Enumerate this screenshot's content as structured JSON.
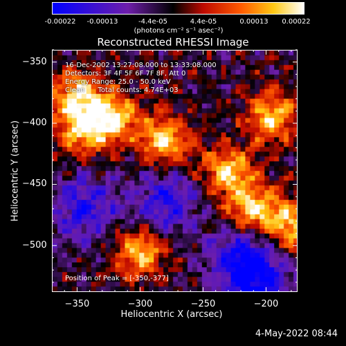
{
  "chart_data": {
    "type": "heatmap",
    "title": "Reconstructed RHESSI Image",
    "xlabel": "Heliocentric X (arcsec)",
    "ylabel": "Heliocentric Y (arcsec)",
    "xlim": [
      -370,
      -175
    ],
    "ylim": [
      -538,
      -340
    ],
    "x_ticks": [
      "-350",
      "-300",
      "-250",
      "-200"
    ],
    "y_ticks": [
      "-350",
      "-400",
      "-450",
      "-500"
    ],
    "colorbar": {
      "ticks": [
        "-0.00022",
        "-0.00013",
        "-4.4e-05",
        "4.4e-05",
        "0.00013",
        "0.00022"
      ],
      "units": "(photons cm⁻² s⁻¹ asec⁻²)",
      "range": [
        -0.00022,
        0.00022
      ],
      "colormap": "blue-purple-black-red-orange-yellow-white"
    },
    "annotations": [
      "16-Dec-2002 13:27:08.000 to 13:33:08.000",
      "Detectors: 3F 4F 5F 6F 7F 8F, Att 0",
      "Energy Range: 25.0 - 50.0 keV",
      "Clean      Total counts: 4.74E+03"
    ],
    "peak_label": "Position of Peak = [-350,-377]",
    "peak": [
      -350,
      -377
    ],
    "bright_regions": [
      {
        "x": -350,
        "y": -377
      },
      {
        "x": -345,
        "y": -405
      },
      {
        "x": -320,
        "y": -395
      },
      {
        "x": -230,
        "y": -440
      },
      {
        "x": -210,
        "y": -470
      },
      {
        "x": -180,
        "y": -485
      },
      {
        "x": -195,
        "y": -395
      },
      {
        "x": -300,
        "y": -505
      },
      {
        "x": -280,
        "y": -415
      }
    ],
    "dim_regions": [
      {
        "x": -345,
        "y": -470
      },
      {
        "x": -280,
        "y": -465
      },
      {
        "x": -220,
        "y": -510
      },
      {
        "x": -205,
        "y": -530
      }
    ]
  },
  "footer": {
    "date": "4-May-2022 08:44"
  }
}
